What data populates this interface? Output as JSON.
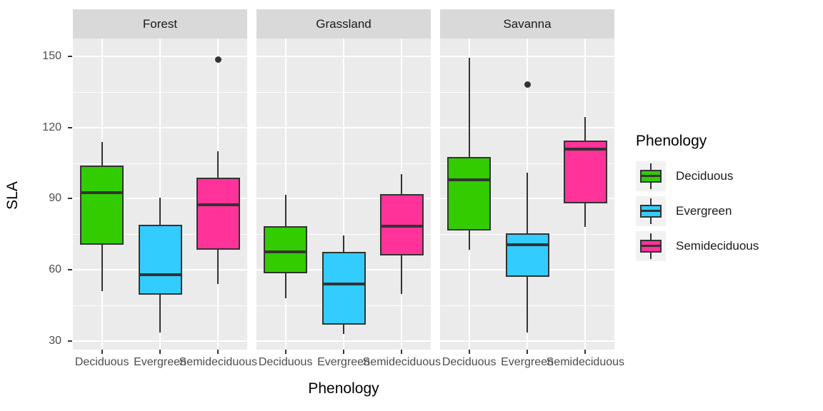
{
  "chart_data": {
    "type": "boxplot",
    "facets": [
      "Forest",
      "Grassland",
      "Savanna"
    ],
    "categories": [
      "Deciduous",
      "Evergreen",
      "Semideciduous"
    ],
    "xlabel": "Phenology",
    "ylabel": "SLA",
    "y_ticks": [
      30,
      60,
      90,
      120,
      150
    ],
    "y_minor_ticks": [
      45,
      75,
      105,
      135
    ],
    "ylim": [
      26.4,
      157.5
    ],
    "grid": true,
    "legend": {
      "title": "Phenology",
      "position": "right",
      "entries": [
        {
          "label": "Deciduous",
          "color": "#33CC00"
        },
        {
          "label": "Evergreen",
          "color": "#33CCFF"
        },
        {
          "label": "Semideciduous",
          "color": "#FF3399"
        }
      ]
    },
    "series": [
      {
        "facet": "Forest",
        "boxes": [
          {
            "category": "Deciduous",
            "whisker_low": 51,
            "q1": 70.5,
            "median": 92.5,
            "q3": 104,
            "whisker_high": 114,
            "outliers": []
          },
          {
            "category": "Evergreen",
            "whisker_low": 33.5,
            "q1": 49.5,
            "median": 58,
            "q3": 79,
            "whisker_high": 90.5,
            "outliers": []
          },
          {
            "category": "Semideciduous",
            "whisker_low": 54,
            "q1": 68.5,
            "median": 87.5,
            "q3": 99,
            "whisker_high": 110,
            "outliers": [
              148.5
            ]
          }
        ]
      },
      {
        "facet": "Grassland",
        "boxes": [
          {
            "category": "Deciduous",
            "whisker_low": 48,
            "q1": 58.5,
            "median": 67.5,
            "q3": 78.5,
            "whisker_high": 91.5,
            "outliers": []
          },
          {
            "category": "Evergreen",
            "whisker_low": 33,
            "q1": 37,
            "median": 54,
            "q3": 67.5,
            "whisker_high": 74.5,
            "outliers": []
          },
          {
            "category": "Semideciduous",
            "whisker_low": 50,
            "q1": 66,
            "median": 78.5,
            "q3": 92,
            "whisker_high": 100.5,
            "outliers": []
          }
        ]
      },
      {
        "facet": "Savanna",
        "boxes": [
          {
            "category": "Deciduous",
            "whisker_low": 68.5,
            "q1": 76.5,
            "median": 98,
            "q3": 107.5,
            "whisker_high": 149.5,
            "outliers": []
          },
          {
            "category": "Evergreen",
            "whisker_low": 33.5,
            "q1": 57,
            "median": 70.5,
            "q3": 75.5,
            "whisker_high": 101,
            "outliers": [
              138
            ]
          },
          {
            "category": "Semideciduous",
            "whisker_low": 78,
            "q1": 88,
            "median": 111,
            "q3": 114.5,
            "whisker_high": 124.5,
            "outliers": []
          }
        ]
      }
    ],
    "colors": {
      "Deciduous": "#33CC00",
      "Evergreen": "#33CCFF",
      "Semideciduous": "#FF3399",
      "panel_bg": "#EBEBEB",
      "strip_bg": "#D9D9D9",
      "grid": "#FFFFFF",
      "box_stroke": "#333333",
      "tick_label": "#4D4D4D"
    }
  }
}
